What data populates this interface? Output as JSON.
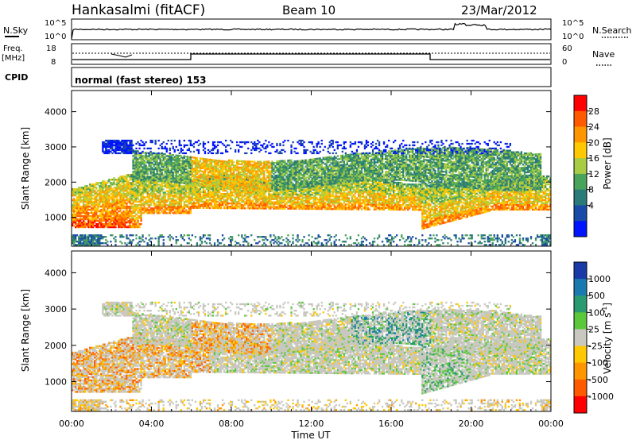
{
  "header": {
    "station": "Hankasalmi (fitACF)",
    "beam": "Beam 10",
    "date": "23/Mar/2012"
  },
  "noise_panel": {
    "left_label": "N.Sky",
    "right_label": "N.Search",
    "ticks_left": [
      "10^5",
      "10^0"
    ],
    "ticks_right": [
      "10^5",
      "10^0"
    ]
  },
  "freq_panel": {
    "left_label_line1": "Freq.",
    "left_label_line2": "[MHz]",
    "ticks_left": [
      "18",
      "8"
    ],
    "right_label": "Nave",
    "ticks_right": [
      "60",
      "0"
    ]
  },
  "cpid_panel": {
    "label": "CPID",
    "text": "normal (fast stereo) 153"
  },
  "x_axis": {
    "label": "Time UT",
    "ticks": [
      "00:00",
      "04:00",
      "08:00",
      "12:00",
      "16:00",
      "20:00",
      "00:00"
    ]
  },
  "chart_data": [
    {
      "type": "heatmap",
      "panel": "power",
      "ylabel": "Slant Range [km]",
      "ylim": [
        180,
        4600
      ],
      "y_ticks": [
        1000,
        2000,
        3000,
        4000
      ],
      "x": [
        "00:00",
        "04:00",
        "08:00",
        "12:00",
        "16:00",
        "20:00",
        "00:00"
      ],
      "colorbar": {
        "label": "Power [dB]",
        "ticks": [
          "28",
          "24",
          "20",
          "16",
          "12",
          "8",
          "4"
        ],
        "colors": [
          "#ff0000",
          "#ff5a00",
          "#ff9600",
          "#ffc800",
          "#a8cc44",
          "#4aa35a",
          "#2a7a7a",
          "#1a4aa8",
          "#0014ff"
        ]
      }
    },
    {
      "type": "heatmap",
      "panel": "velocity",
      "ylabel": "Slant Range [km]",
      "ylim": [
        180,
        4600
      ],
      "y_ticks": [
        1000,
        2000,
        3000,
        4000
      ],
      "x": [
        "00:00",
        "04:00",
        "08:00",
        "12:00",
        "16:00",
        "20:00",
        "00:00"
      ],
      "colorbar": {
        "label": "Velocity [m s",
        "label_sup": "-1",
        "label_end": "]",
        "ticks": [
          "1000",
          "500",
          "100",
          "25",
          "-25",
          "-100",
          "-500",
          "-1000"
        ],
        "colors": [
          "#1a3aa8",
          "#1a7ab0",
          "#2a9a70",
          "#5ac83a",
          "#c8c8c0",
          "#ffc800",
          "#ff9600",
          "#ff5a00",
          "#ff0000"
        ]
      }
    }
  ]
}
